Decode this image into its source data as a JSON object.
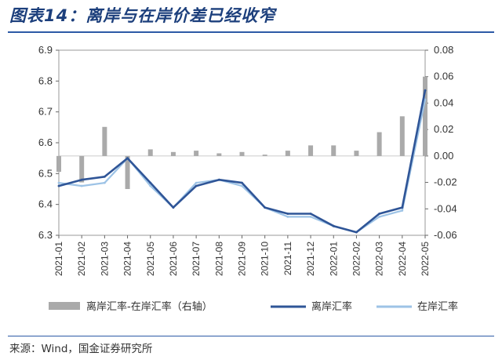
{
  "title": "图表14：离岸与在岸价差已经收窄",
  "source": "来源：Wind，国金证券研究所",
  "chart_data": {
    "type": "line",
    "left_axis": {
      "ylim": [
        6.3,
        6.9
      ],
      "ticks": [
        "6.9",
        "6.8",
        "6.7",
        "6.6",
        "6.5",
        "6.4",
        "6.3"
      ]
    },
    "right_axis": {
      "ylim": [
        -0.06,
        0.08
      ],
      "ticks": [
        "0.08",
        "0.06",
        "0.04",
        "0.02",
        "0.00",
        "-0.02",
        "-0.04",
        "-0.06"
      ]
    },
    "categories": [
      "2021-01",
      "2021-02",
      "2021-03",
      "2021-04",
      "2021-05",
      "2021-06",
      "2021-07",
      "2021-08",
      "2021-09",
      "2021-10",
      "2021-11",
      "2021-12",
      "2022-01",
      "2022-02",
      "2022-03",
      "2022-04",
      "2022-05"
    ],
    "series": [
      {
        "name": "离岸汇率-在岸汇率（右轴）",
        "type": "bar",
        "axis": "right",
        "color": "#aaaaaa",
        "values": [
          -0.012,
          -0.02,
          0.022,
          -0.025,
          0.005,
          0.003,
          0.004,
          0.002,
          0.003,
          0.001,
          0.004,
          0.008,
          0.008,
          0.004,
          0.018,
          0.03,
          0.06
        ]
      },
      {
        "name": "离岸汇率",
        "type": "line",
        "axis": "left",
        "color": "#2f5597",
        "values": [
          6.46,
          6.48,
          6.49,
          6.55,
          6.47,
          6.39,
          6.46,
          6.48,
          6.47,
          6.39,
          6.37,
          6.37,
          6.33,
          6.31,
          6.37,
          6.39,
          6.77
        ]
      },
      {
        "name": "在岸汇率",
        "type": "line",
        "axis": "left",
        "color": "#9dc3e6",
        "values": [
          6.47,
          6.46,
          6.47,
          6.55,
          6.46,
          6.39,
          6.47,
          6.48,
          6.46,
          6.39,
          6.36,
          6.36,
          6.33,
          6.31,
          6.36,
          6.38,
          6.74
        ]
      }
    ],
    "legend_position": "bottom"
  }
}
